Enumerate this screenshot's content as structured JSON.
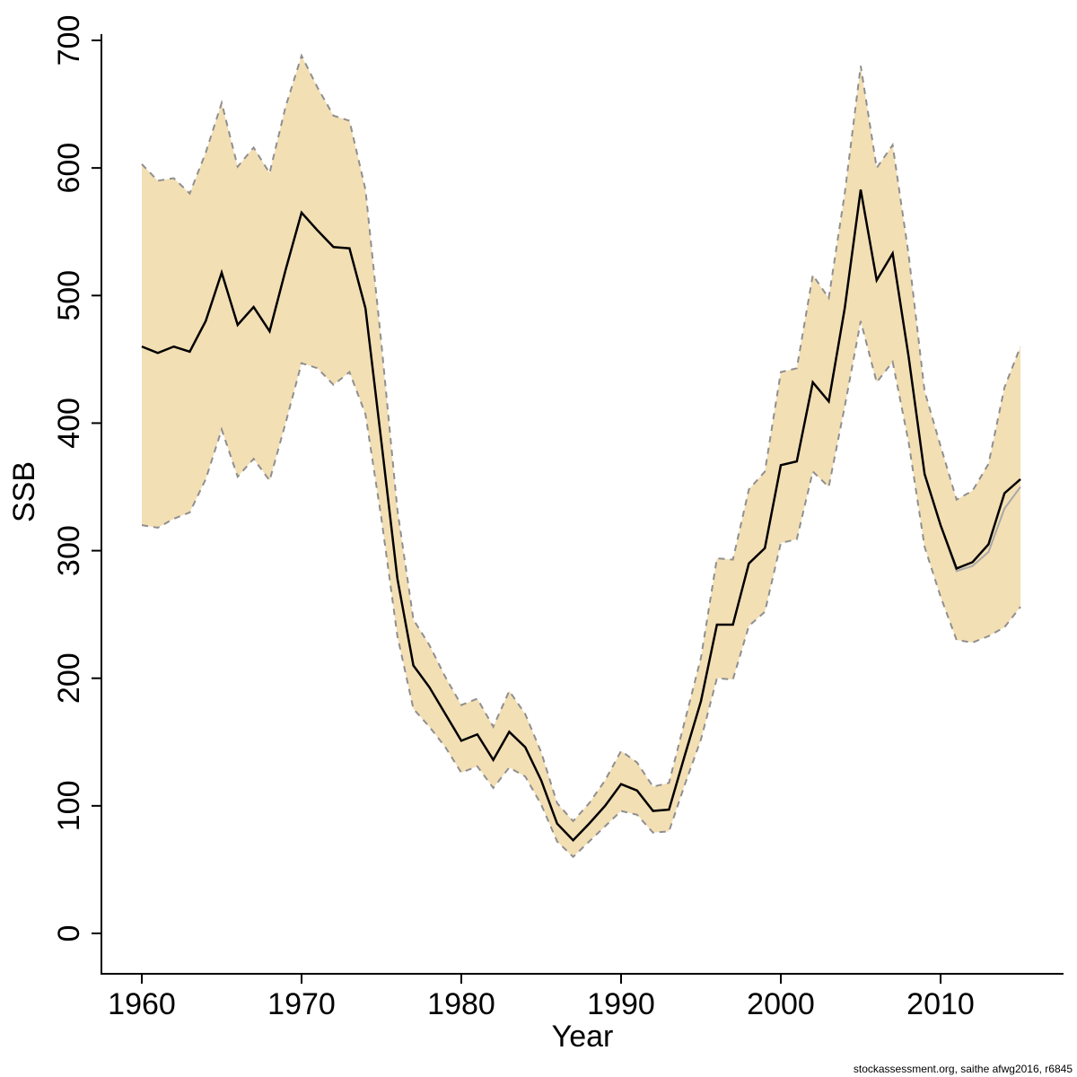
{
  "page": {
    "background": "#ffffff"
  },
  "footer": {
    "credit": "stockassessment.org, saithe  afwg2016, r6845"
  },
  "chart_data": {
    "type": "area",
    "title": "",
    "xlabel": "Year",
    "ylabel": "SSB",
    "xlim": [
      1957.5,
      2017.5
    ],
    "ylim": [
      0,
      700
    ],
    "x_ticks": [
      1960,
      1970,
      1980,
      1990,
      2000,
      2010
    ],
    "y_ticks": [
      0,
      100,
      200,
      300,
      400,
      500,
      600,
      700
    ],
    "grid": false,
    "legend": "none",
    "band_fill": "#f3dfb4",
    "band_edge_color": "#8f8f8f",
    "line_color": "#000000",
    "comparison_line_color": "#a9a9a9",
    "axis_color": "#000000",
    "years": [
      1960,
      1961,
      1962,
      1963,
      1964,
      1965,
      1966,
      1967,
      1968,
      1969,
      1970,
      1971,
      1972,
      1973,
      1974,
      1975,
      1976,
      1977,
      1978,
      1979,
      1980,
      1981,
      1982,
      1983,
      1984,
      1985,
      1986,
      1987,
      1988,
      1989,
      1990,
      1991,
      1992,
      1993,
      1994,
      1995,
      1996,
      1997,
      1998,
      1999,
      2000,
      2001,
      2002,
      2003,
      2004,
      2005,
      2006,
      2007,
      2008,
      2009,
      2010,
      2011,
      2012,
      2013,
      2014,
      2015
    ],
    "series": [
      {
        "name": "SSB estimate",
        "values": [
          460,
          455,
          460,
          456,
          480,
          518,
          477,
          491,
          472,
          520,
          565,
          551,
          538,
          537,
          490,
          385,
          278,
          210,
          193,
          172,
          151,
          156,
          136,
          158,
          146,
          120,
          86,
          73,
          86,
          100,
          117,
          112,
          96,
          97,
          140,
          182,
          242,
          242,
          290,
          302,
          367,
          370,
          432,
          417,
          490,
          583,
          512,
          533,
          452,
          360,
          320,
          286,
          291,
          305,
          345,
          356
        ]
      },
      {
        "name": "SSB previous assessment",
        "values": [
          460,
          455,
          460,
          456,
          480,
          518,
          477,
          491,
          472,
          520,
          565,
          551,
          538,
          537,
          490,
          385,
          278,
          210,
          193,
          172,
          151,
          156,
          136,
          158,
          146,
          120,
          86,
          73,
          86,
          100,
          117,
          112,
          96,
          97,
          140,
          182,
          242,
          242,
          290,
          302,
          367,
          370,
          432,
          417,
          490,
          583,
          512,
          533,
          452,
          360,
          320,
          284,
          288,
          299,
          333,
          350
        ]
      }
    ],
    "band_upper": [
      603,
      590,
      592,
      580,
      612,
      651,
      601,
      616,
      596,
      648,
      688,
      663,
      641,
      637,
      583,
      462,
      332,
      246,
      226,
      201,
      179,
      184,
      162,
      190,
      172,
      142,
      102,
      88,
      102,
      120,
      143,
      134,
      115,
      118,
      167,
      216,
      294,
      293,
      348,
      362,
      440,
      443,
      516,
      498,
      580,
      680,
      600,
      618,
      532,
      425,
      382,
      340,
      347,
      368,
      428,
      460
    ],
    "band_lower": [
      320,
      318,
      325,
      330,
      356,
      395,
      358,
      372,
      355,
      400,
      447,
      443,
      430,
      440,
      407,
      325,
      233,
      176,
      162,
      146,
      126,
      131,
      114,
      130,
      123,
      101,
      72,
      60,
      72,
      84,
      96,
      93,
      79,
      80,
      117,
      152,
      200,
      199,
      241,
      252,
      306,
      309,
      362,
      350,
      413,
      480,
      432,
      448,
      385,
      303,
      264,
      230,
      228,
      233,
      240,
      256
    ]
  }
}
